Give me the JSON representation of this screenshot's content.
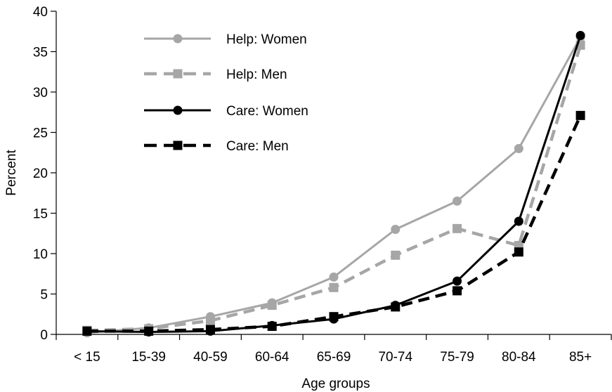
{
  "chart_data": {
    "type": "line",
    "xlabel": "Age groups",
    "ylabel": "Percent",
    "ylim": [
      0,
      40
    ],
    "yticks": [
      0,
      5,
      10,
      15,
      20,
      25,
      30,
      35,
      40
    ],
    "categories": [
      "< 15",
      "15-39",
      "40-59",
      "60-64",
      "65-69",
      "70-74",
      "75-79",
      "80-84",
      "85+"
    ],
    "grid": false,
    "legend_position": "top-left",
    "series": [
      {
        "name": "Help: Women",
        "values": [
          0.2,
          0.8,
          2.2,
          3.9,
          7.1,
          13.0,
          16.5,
          23.0,
          36.8
        ],
        "color": "#a6a6a6",
        "dash": "solid",
        "marker": "circle"
      },
      {
        "name": "Help: Men",
        "values": [
          0.5,
          0.7,
          1.7,
          3.6,
          5.8,
          9.8,
          13.1,
          11.0,
          35.8
        ],
        "color": "#a6a6a6",
        "dash": "dashed",
        "marker": "square"
      },
      {
        "name": "Care: Women",
        "values": [
          0.4,
          0.3,
          0.4,
          1.1,
          1.9,
          3.6,
          6.6,
          14.0,
          37.0
        ],
        "color": "#000000",
        "dash": "solid",
        "marker": "circle"
      },
      {
        "name": "Care: Men",
        "values": [
          0.4,
          0.4,
          0.6,
          1.0,
          2.2,
          3.4,
          5.4,
          10.2,
          27.1
        ],
        "color": "#000000",
        "dash": "dashed",
        "marker": "square"
      }
    ]
  }
}
